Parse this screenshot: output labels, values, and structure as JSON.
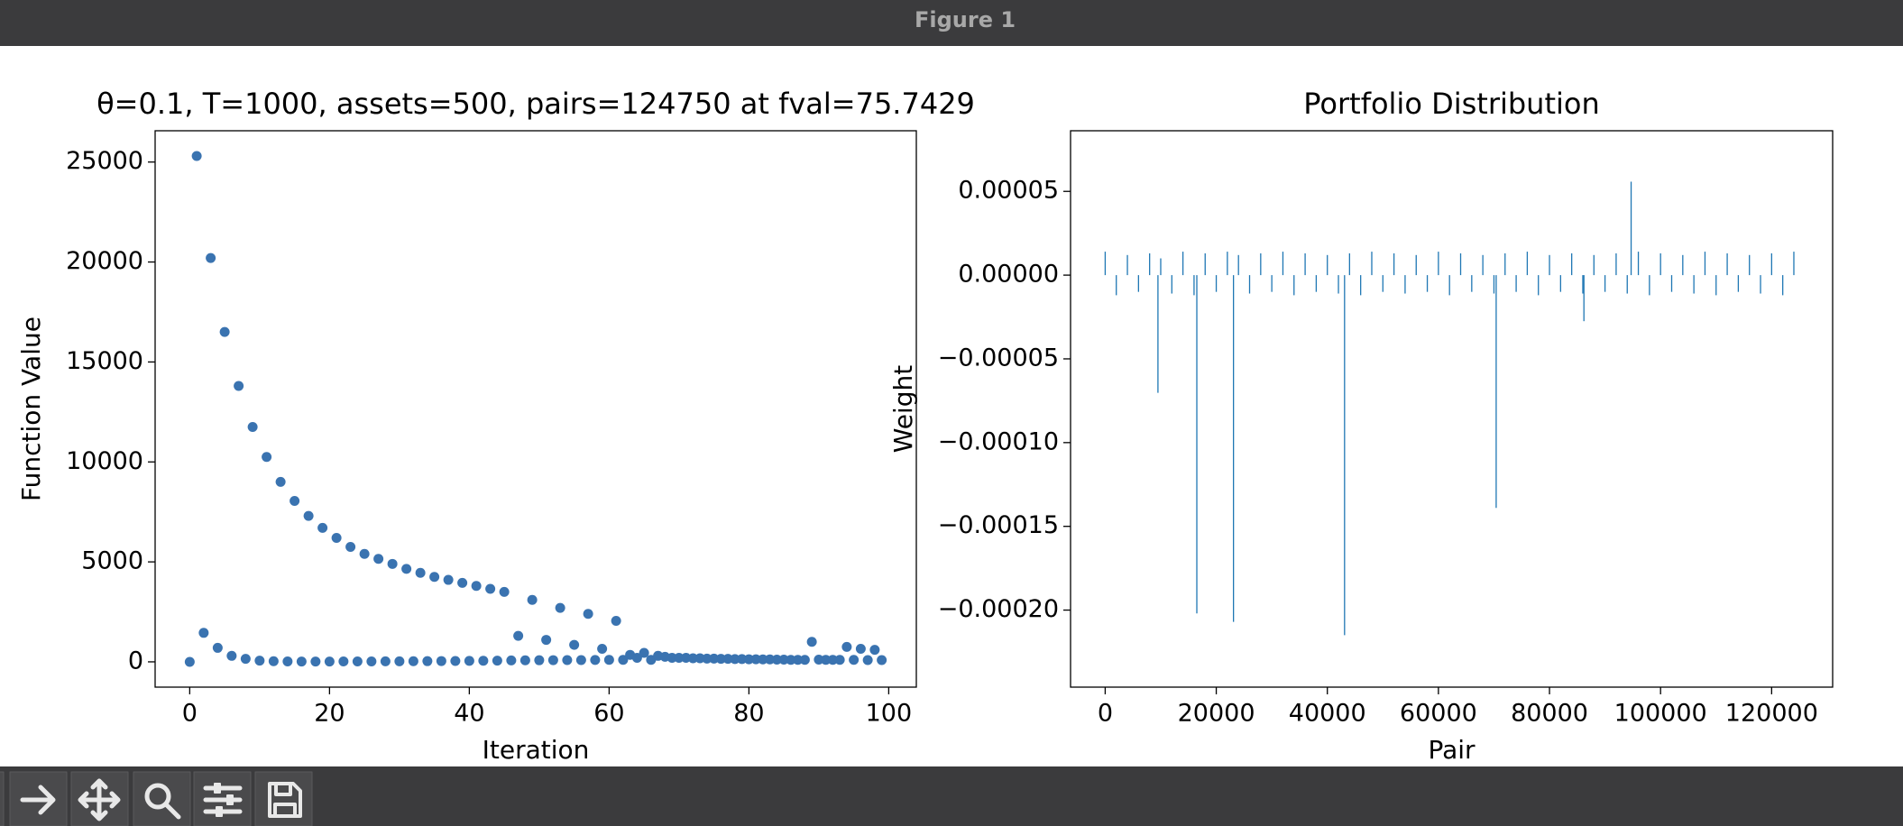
{
  "window": {
    "title": "Figure 1"
  },
  "chart_data": [
    {
      "type": "scatter",
      "title": "θ=0.1, T=1000, assets=500, pairs=124750 at fval=75.7429",
      "x_label": "Iteration",
      "y_label": "Function Value",
      "color": "#3a73b0",
      "x": [
        0,
        1,
        2,
        3,
        4,
        5,
        6,
        7,
        8,
        9,
        10,
        11,
        12,
        13,
        14,
        15,
        16,
        17,
        18,
        19,
        20,
        21,
        22,
        23,
        24,
        25,
        26,
        27,
        28,
        29,
        30,
        31,
        32,
        33,
        34,
        35,
        36,
        37,
        38,
        39,
        40,
        41,
        42,
        43,
        44,
        45,
        46,
        47,
        48,
        49,
        50,
        51,
        52,
        53,
        54,
        55,
        56,
        57,
        58,
        59,
        60,
        61,
        62,
        63,
        64,
        65,
        66,
        67,
        68,
        69,
        70,
        71,
        72,
        73,
        74,
        75,
        76,
        77,
        78,
        79,
        80,
        81,
        82,
        83,
        84,
        85,
        86,
        87,
        88,
        89,
        90,
        91,
        92,
        93,
        94,
        95,
        96,
        97,
        98,
        99
      ],
      "values": [
        0,
        25300,
        1450,
        20200,
        700,
        16500,
        300,
        13800,
        150,
        11750,
        60,
        10250,
        30,
        9000,
        20,
        8050,
        15,
        7300,
        15,
        6700,
        15,
        6200,
        20,
        5750,
        20,
        5400,
        20,
        5150,
        25,
        4900,
        25,
        4650,
        30,
        4450,
        35,
        4250,
        40,
        4100,
        45,
        3950,
        50,
        3800,
        55,
        3650,
        60,
        3500,
        70,
        1300,
        75,
        3100,
        80,
        1100,
        85,
        2700,
        90,
        850,
        90,
        2400,
        95,
        650,
        100,
        2050,
        100,
        350,
        200,
        450,
        100,
        300,
        250,
        200,
        200,
        200,
        180,
        180,
        160,
        160,
        150,
        150,
        140,
        140,
        130,
        130,
        120,
        120,
        110,
        110,
        100,
        100,
        100,
        1000,
        110,
        100,
        100,
        100,
        750,
        100,
        650,
        90,
        600,
        90
      ],
      "xlim": [
        -4.95,
        103.95
      ],
      "ylim": [
        -1265,
        26565
      ],
      "xticks": [
        0,
        20,
        40,
        60,
        80,
        100
      ],
      "yticks": [
        0,
        5000,
        10000,
        15000,
        20000,
        25000
      ]
    },
    {
      "type": "vlines",
      "title": "Portfolio Distribution",
      "x_label": "Pair",
      "y_label": "Weight",
      "color": "#1f77b4",
      "x": [
        0,
        2000,
        4000,
        6000,
        8000,
        9500,
        10000,
        12000,
        14000,
        16000,
        16500,
        18000,
        20000,
        22000,
        23100,
        24000,
        26000,
        28000,
        30000,
        32000,
        34000,
        36000,
        38000,
        40000,
        42000,
        43100,
        44000,
        46000,
        48000,
        50000,
        52000,
        54000,
        56000,
        58000,
        60000,
        62000,
        64000,
        66000,
        68000,
        70000,
        70400,
        72000,
        74000,
        76000,
        78000,
        80000,
        82000,
        84000,
        86000,
        86200,
        88000,
        90000,
        92000,
        94000,
        94700,
        96000,
        98000,
        100000,
        102000,
        104000,
        106000,
        108000,
        110000,
        112000,
        114000,
        116000,
        118000,
        120000,
        122000,
        124000
      ],
      "values": [
        1.4e-05,
        -1.2e-05,
        1.2e-05,
        -1e-05,
        1.3e-05,
        -7.03e-05,
        1e-05,
        -1.1e-05,
        1.4e-05,
        -1.2e-05,
        -0.000202,
        1.3e-05,
        -1e-05,
        1.4e-05,
        -0.000207,
        1.2e-05,
        -1.1e-05,
        1.3e-05,
        -1e-05,
        1.4e-05,
        -1.2e-05,
        1.3e-05,
        -1e-05,
        1.2e-05,
        -1.1e-05,
        -0.000215,
        1.3e-05,
        -1.2e-05,
        1.4e-05,
        -1e-05,
        1.3e-05,
        -1.1e-05,
        1.2e-05,
        -1e-05,
        1.4e-05,
        -1.2e-05,
        1.3e-05,
        -1e-05,
        1.2e-05,
        -1.1e-05,
        -0.000139,
        1.3e-05,
        -1e-05,
        1.4e-05,
        -1.2e-05,
        1.2e-05,
        -1e-05,
        1.3e-05,
        -1.1e-05,
        -2.75e-05,
        1.2e-05,
        -1e-05,
        1.3e-05,
        -1.1e-05,
        5.58e-05,
        1.4e-05,
        -1.2e-05,
        1.3e-05,
        -1e-05,
        1.2e-05,
        -1.1e-05,
        1.4e-05,
        -1.2e-05,
        1.3e-05,
        -1e-05,
        1.2e-05,
        -1.1e-05,
        1.3e-05,
        -1.2e-05,
        1.4e-05
      ],
      "xlim": [
        -6237,
        130986
      ],
      "ylim": [
        -0.000246,
        8.62e-05
      ],
      "xticks": [
        0,
        20000,
        40000,
        60000,
        80000,
        100000,
        120000
      ],
      "yticks": [
        {
          "value": 5e-05,
          "label": "0.00005"
        },
        {
          "value": 0,
          "label": "0.00000"
        },
        {
          "value": -5e-05,
          "label": "−0.00005"
        },
        {
          "value": -0.0001,
          "label": "−0.00010"
        },
        {
          "value": -0.00015,
          "label": "−0.00015"
        },
        {
          "value": -0.0002,
          "label": "−0.00020"
        }
      ]
    }
  ]
}
